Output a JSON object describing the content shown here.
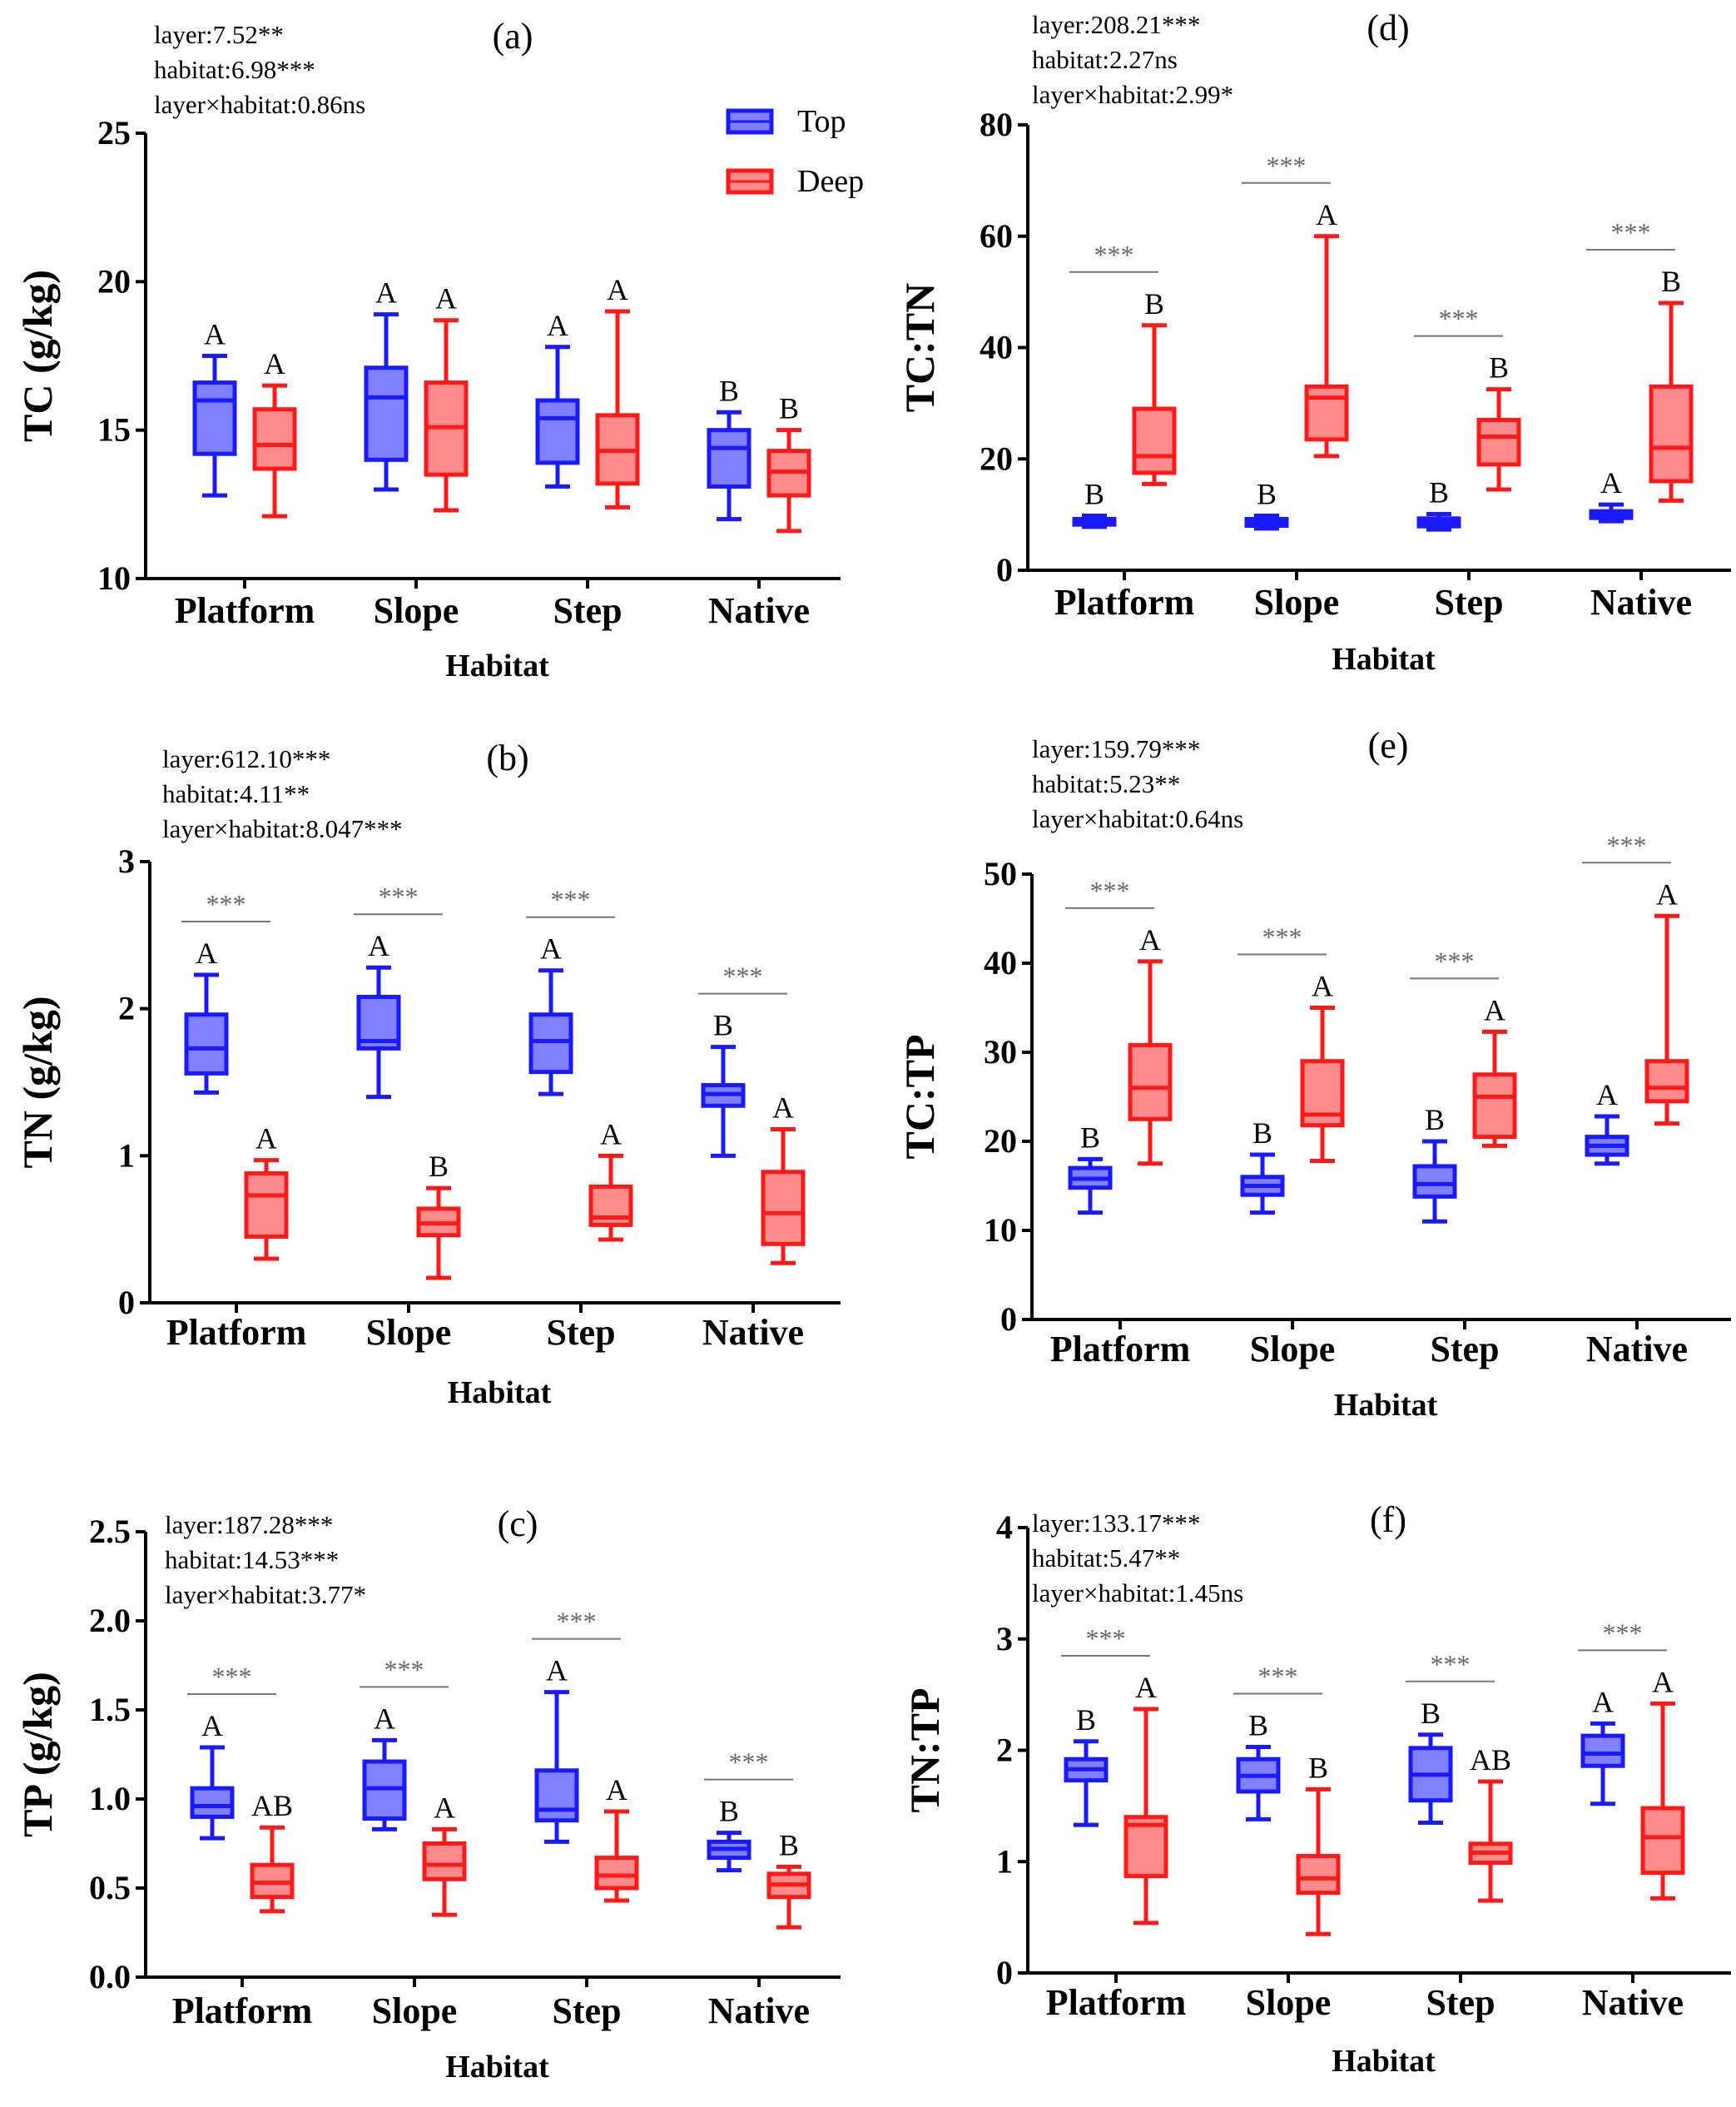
{
  "colors": {
    "top": "#1a1aff",
    "top_fill": "#8080ff",
    "deep": "#ff1a1a",
    "deep_fill": "#ff8c8c",
    "sig": "#777777",
    "axis": "#000000"
  },
  "legend": {
    "top": "Top",
    "deep": "Deep"
  },
  "chart_data": [
    {
      "id": "a",
      "type": "box",
      "label": "(a)",
      "ylabel": "TC (g/kg)",
      "xlabel": "Habitat",
      "categories": [
        "Platform",
        "Slope",
        "Step",
        "Native"
      ],
      "ylim": [
        10,
        25
      ],
      "yticks": [
        "10",
        "15",
        "20",
        "25"
      ],
      "stats": [
        "layer:7.52**",
        "habitat:6.98***",
        "layer×habitat:0.86ns"
      ],
      "series": [
        {
          "name": "Top",
          "boxes": [
            {
              "min": 12.8,
              "q1": 14.2,
              "med": 16.0,
              "q3": 16.6,
              "max": 17.5,
              "letter": "A"
            },
            {
              "min": 13.0,
              "q1": 14.0,
              "med": 16.1,
              "q3": 17.1,
              "max": 18.9,
              "letter": "A"
            },
            {
              "min": 13.1,
              "q1": 13.9,
              "med": 15.4,
              "q3": 16.0,
              "max": 17.8,
              "letter": "A"
            },
            {
              "min": 12.0,
              "q1": 13.1,
              "med": 14.4,
              "q3": 15.0,
              "max": 15.6,
              "letter": "B"
            }
          ]
        },
        {
          "name": "Deep",
          "boxes": [
            {
              "min": 12.1,
              "q1": 13.7,
              "med": 14.5,
              "q3": 15.7,
              "max": 16.5,
              "letter": "A"
            },
            {
              "min": 12.3,
              "q1": 13.5,
              "med": 15.1,
              "q3": 16.6,
              "max": 18.7,
              "letter": "A"
            },
            {
              "min": 12.4,
              "q1": 13.2,
              "med": 14.3,
              "q3": 15.5,
              "max": 19.0,
              "letter": "A"
            },
            {
              "min": 11.6,
              "q1": 12.8,
              "med": 13.6,
              "q3": 14.3,
              "max": 15.0,
              "letter": "B"
            }
          ]
        }
      ],
      "significance": [
        "",
        "",
        "",
        ""
      ]
    },
    {
      "id": "b",
      "type": "box",
      "label": "(b)",
      "ylabel": "TN (g/kg)",
      "xlabel": "Habitat",
      "categories": [
        "Platform",
        "Slope",
        "Step",
        "Native"
      ],
      "ylim": [
        0,
        3
      ],
      "yticks": [
        "0",
        "1",
        "2",
        "3"
      ],
      "stats": [
        "layer:612.10***",
        "habitat:4.11**",
        "layer×habitat:8.047***"
      ],
      "series": [
        {
          "name": "Top",
          "boxes": [
            {
              "min": 1.43,
              "q1": 1.56,
              "med": 1.73,
              "q3": 1.96,
              "max": 2.23,
              "letter": "A"
            },
            {
              "min": 1.4,
              "q1": 1.73,
              "med": 1.78,
              "q3": 2.08,
              "max": 2.28,
              "letter": "A"
            },
            {
              "min": 1.42,
              "q1": 1.57,
              "med": 1.78,
              "q3": 1.96,
              "max": 2.26,
              "letter": "A"
            },
            {
              "min": 1.0,
              "q1": 1.34,
              "med": 1.42,
              "q3": 1.48,
              "max": 1.74,
              "letter": "B"
            }
          ]
        },
        {
          "name": "Deep",
          "boxes": [
            {
              "min": 0.3,
              "q1": 0.45,
              "med": 0.73,
              "q3": 0.88,
              "max": 0.97,
              "letter": "A"
            },
            {
              "min": 0.17,
              "q1": 0.46,
              "med": 0.54,
              "q3": 0.64,
              "max": 0.78,
              "letter": "B"
            },
            {
              "min": 0.43,
              "q1": 0.53,
              "med": 0.58,
              "q3": 0.79,
              "max": 1.0,
              "letter": "A"
            },
            {
              "min": 0.27,
              "q1": 0.4,
              "med": 0.61,
              "q3": 0.89,
              "max": 1.18,
              "letter": "A"
            }
          ]
        }
      ],
      "significance": [
        "***",
        "***",
        "***",
        "***"
      ]
    },
    {
      "id": "c",
      "type": "box",
      "label": "(c)",
      "ylabel": "TP (g/kg)",
      "xlabel": "Habitat",
      "categories": [
        "Platform",
        "Slope",
        "Step",
        "Native"
      ],
      "ylim": [
        0,
        2.5
      ],
      "yticks": [
        "0.0",
        "0.5",
        "1.0",
        "1.5",
        "2.0",
        "2.5"
      ],
      "stats": [
        "layer:187.28***",
        "habitat:14.53***",
        "layer×habitat:3.77*"
      ],
      "series": [
        {
          "name": "Top",
          "boxes": [
            {
              "min": 0.78,
              "q1": 0.9,
              "med": 0.96,
              "q3": 1.06,
              "max": 1.29,
              "letter": "A"
            },
            {
              "min": 0.83,
              "q1": 0.89,
              "med": 1.06,
              "q3": 1.21,
              "max": 1.33,
              "letter": "A"
            },
            {
              "min": 0.76,
              "q1": 0.88,
              "med": 0.94,
              "q3": 1.16,
              "max": 1.6,
              "letter": "A"
            },
            {
              "min": 0.6,
              "q1": 0.67,
              "med": 0.72,
              "q3": 0.76,
              "max": 0.81,
              "letter": "B"
            }
          ]
        },
        {
          "name": "Deep",
          "boxes": [
            {
              "min": 0.37,
              "q1": 0.45,
              "med": 0.53,
              "q3": 0.63,
              "max": 0.84,
              "letter": "AB"
            },
            {
              "min": 0.35,
              "q1": 0.55,
              "med": 0.63,
              "q3": 0.75,
              "max": 0.83,
              "letter": "A"
            },
            {
              "min": 0.43,
              "q1": 0.5,
              "med": 0.57,
              "q3": 0.67,
              "max": 0.93,
              "letter": "A"
            },
            {
              "min": 0.28,
              "q1": 0.45,
              "med": 0.52,
              "q3": 0.58,
              "max": 0.62,
              "letter": "B"
            }
          ]
        }
      ],
      "significance": [
        "***",
        "***",
        "***",
        "***"
      ]
    },
    {
      "id": "d",
      "type": "box",
      "label": "(d)",
      "ylabel": "TC:TN",
      "xlabel": "Habitat",
      "categories": [
        "Platform",
        "Slope",
        "Step",
        "Native"
      ],
      "ylim": [
        0,
        80
      ],
      "yticks": [
        "0",
        "20",
        "40",
        "60",
        "80"
      ],
      "stats": [
        "layer:208.21***",
        "habitat:2.27ns",
        "layer×habitat:2.99*"
      ],
      "series": [
        {
          "name": "Top",
          "boxes": [
            {
              "min": 7.8,
              "q1": 8.2,
              "med": 8.7,
              "q3": 9.2,
              "max": 9.8,
              "letter": "B"
            },
            {
              "min": 7.5,
              "q1": 8.0,
              "med": 8.6,
              "q3": 9.2,
              "max": 9.8,
              "letter": "B"
            },
            {
              "min": 7.3,
              "q1": 7.9,
              "med": 8.6,
              "q3": 9.3,
              "max": 10.1,
              "letter": "B"
            },
            {
              "min": 8.8,
              "q1": 9.4,
              "med": 10.0,
              "q3": 10.6,
              "max": 11.8,
              "letter": "A"
            }
          ]
        },
        {
          "name": "Deep",
          "boxes": [
            {
              "min": 15.5,
              "q1": 17.5,
              "med": 20.5,
              "q3": 29.0,
              "max": 44.0,
              "letter": "B"
            },
            {
              "min": 20.5,
              "q1": 23.5,
              "med": 31.0,
              "q3": 33.0,
              "max": 60.0,
              "letter": "A"
            },
            {
              "min": 14.5,
              "q1": 19.0,
              "med": 24.0,
              "q3": 27.0,
              "max": 32.5,
              "letter": "B"
            },
            {
              "min": 12.5,
              "q1": 16.0,
              "med": 22.0,
              "q3": 33.0,
              "max": 48.0,
              "letter": "B"
            }
          ]
        }
      ],
      "significance": [
        "***",
        "***",
        "***",
        "***"
      ]
    },
    {
      "id": "e",
      "type": "box",
      "label": "(e)",
      "ylabel": "TC:TP",
      "xlabel": "Habitat",
      "categories": [
        "Platform",
        "Slope",
        "Step",
        "Native"
      ],
      "ylim": [
        0,
        50
      ],
      "yticks": [
        "0",
        "10",
        "20",
        "30",
        "40",
        "50"
      ],
      "stats": [
        "layer:159.79***",
        "habitat:5.23**",
        "layer×habitat:0.64ns"
      ],
      "series": [
        {
          "name": "Top",
          "boxes": [
            {
              "min": 12.0,
              "q1": 14.8,
              "med": 15.8,
              "q3": 17.0,
              "max": 18.0,
              "letter": "B"
            },
            {
              "min": 12.0,
              "q1": 14.0,
              "med": 15.0,
              "q3": 16.0,
              "max": 18.5,
              "letter": "B"
            },
            {
              "min": 11.0,
              "q1": 13.8,
              "med": 15.2,
              "q3": 17.2,
              "max": 20.0,
              "letter": "B"
            },
            {
              "min": 17.5,
              "q1": 18.5,
              "med": 19.5,
              "q3": 20.5,
              "max": 22.8,
              "letter": "A"
            }
          ]
        },
        {
          "name": "Deep",
          "boxes": [
            {
              "min": 17.5,
              "q1": 22.5,
              "med": 26.0,
              "q3": 30.8,
              "max": 40.2,
              "letter": "A"
            },
            {
              "min": 17.8,
              "q1": 21.8,
              "med": 23.0,
              "q3": 29.0,
              "max": 35.0,
              "letter": "A"
            },
            {
              "min": 19.5,
              "q1": 20.5,
              "med": 25.0,
              "q3": 27.5,
              "max": 32.3,
              "letter": "A"
            },
            {
              "min": 22.0,
              "q1": 24.5,
              "med": 26.0,
              "q3": 29.0,
              "max": 45.3,
              "letter": "A"
            }
          ]
        }
      ],
      "significance": [
        "***",
        "***",
        "***",
        "***"
      ]
    },
    {
      "id": "f",
      "type": "box",
      "label": "(f)",
      "ylabel": "TN:TP",
      "xlabel": "Habitat",
      "categories": [
        "Platform",
        "Slope",
        "Step",
        "Native"
      ],
      "ylim": [
        0,
        4
      ],
      "yticks": [
        "0",
        "1",
        "2",
        "3",
        "4"
      ],
      "stats": [
        "layer:133.17***",
        "habitat:5.47**",
        "layer×habitat:1.45ns"
      ],
      "series": [
        {
          "name": "Top",
          "boxes": [
            {
              "min": 1.33,
              "q1": 1.73,
              "med": 1.83,
              "q3": 1.92,
              "max": 2.08,
              "letter": "B"
            },
            {
              "min": 1.38,
              "q1": 1.63,
              "med": 1.77,
              "q3": 1.92,
              "max": 2.03,
              "letter": "B"
            },
            {
              "min": 1.35,
              "q1": 1.55,
              "med": 1.78,
              "q3": 2.02,
              "max": 2.14,
              "letter": "B"
            },
            {
              "min": 1.52,
              "q1": 1.86,
              "med": 1.97,
              "q3": 2.13,
              "max": 2.24,
              "letter": "A"
            }
          ]
        },
        {
          "name": "Deep",
          "boxes": [
            {
              "min": 0.45,
              "q1": 0.87,
              "med": 1.33,
              "q3": 1.4,
              "max": 2.37,
              "letter": "A"
            },
            {
              "min": 0.35,
              "q1": 0.72,
              "med": 0.85,
              "q3": 1.05,
              "max": 1.65,
              "letter": "B"
            },
            {
              "min": 0.65,
              "q1": 0.99,
              "med": 1.08,
              "q3": 1.16,
              "max": 1.72,
              "letter": "AB"
            },
            {
              "min": 0.67,
              "q1": 0.9,
              "med": 1.22,
              "q3": 1.48,
              "max": 2.42,
              "letter": "A"
            }
          ]
        }
      ],
      "significance": [
        "***",
        "***",
        "***",
        "***"
      ]
    }
  ]
}
